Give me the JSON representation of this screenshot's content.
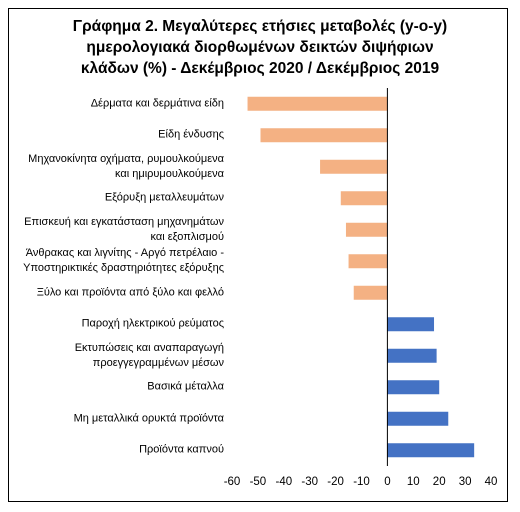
{
  "chart_data": {
    "type": "barh",
    "title": "Γράφημα 2. Μεγαλύτερες ετήσιες μεταβολές (y-o-y)\nημερολογιακά διορθωμένων δεικτών διψήφιων\nκλάδων (%) - Δεκέμβριος 2020 / Δεκέμβριος 2019",
    "categories": [
      "Δέρματα και δερμάτινα είδη",
      "Είδη ένδυσης",
      "Μηχανοκίνητα οχήματα, ρυμουλκούμενα\nκαι ημιρυμουλκούμενα",
      "Εξόρυξη μεταλλευμάτων",
      "Επισκευή και εγκατάσταση μηχανημάτων\nκαι εξοπλισμού",
      "Άνθρακας και λιγνίτης - Αργό πετρέλαιο -\nΥποστηρικτικές δραστηριότητες εξόρυξης",
      "Ξύλο και προϊόντα από ξύλο και φελλό",
      "Παροχή ηλεκτρικού ρεύματος",
      "Εκτυπώσεις και αναπαραγωγή\nπροεγγεγραμμένων μέσων",
      "Βασικά μέταλλα",
      "Μη μεταλλικά ορυκτά προϊόντα",
      "Προϊόντα καπνού"
    ],
    "values": [
      -54,
      -49,
      -26,
      -18,
      -16,
      -15,
      -13,
      18,
      19,
      20,
      23.5,
      33.5
    ],
    "negative_color": "#f4b183",
    "positive_color": "#4472c4",
    "xlim": [
      -60,
      40
    ],
    "xticks": [
      -60,
      -50,
      -40,
      -30,
      -20,
      -10,
      0,
      10,
      20,
      30,
      40
    ]
  }
}
